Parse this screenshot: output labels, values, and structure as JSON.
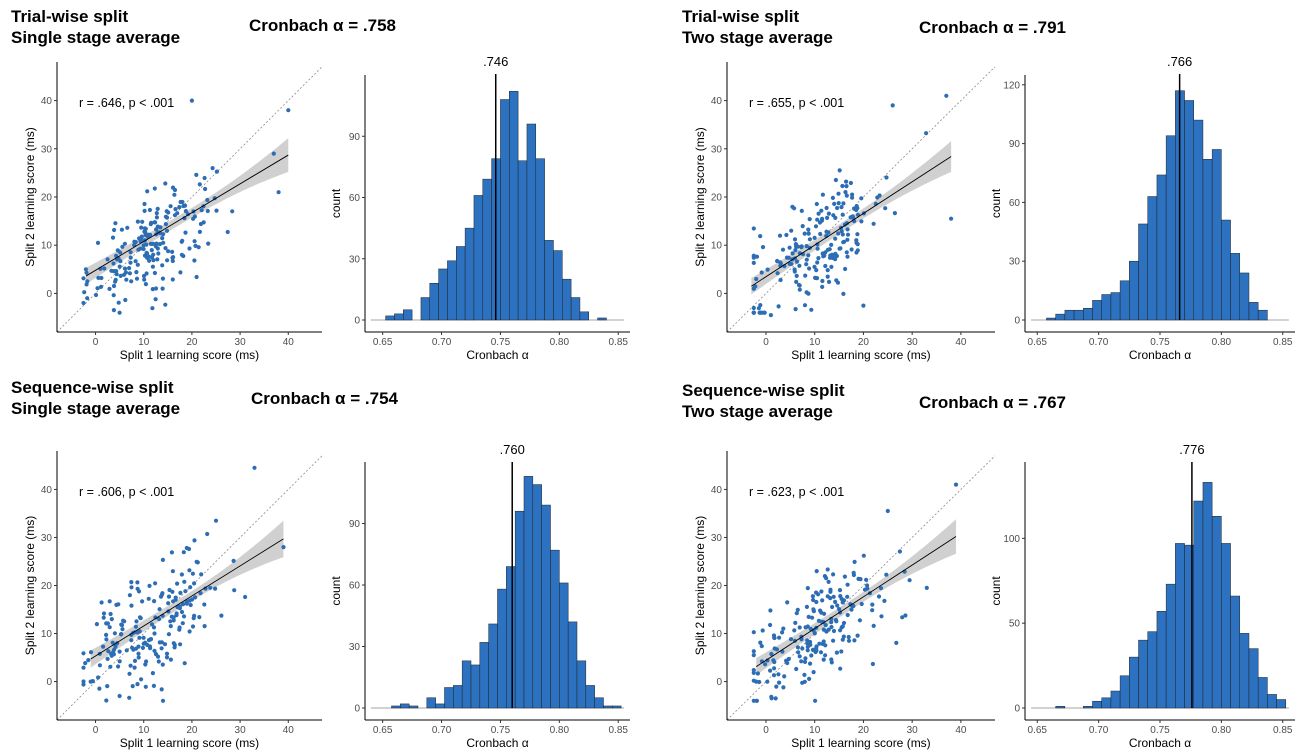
{
  "colors": {
    "points": "#2d6db4",
    "bars": "#2c72c1",
    "bar_border": "#222222",
    "ci_band": "#c8c8c8",
    "fit_line": "#000000",
    "identity_line": "#8c8c8c"
  },
  "chart_data": [
    {
      "panel_title": [
        "Trial-wise split",
        "Single stage average"
      ],
      "alpha_label": "Cronbach α = .758",
      "scatter": {
        "type": "scatter",
        "annotation": "r = .646, p < .001",
        "xlabel": "Split 1 learning score (ms)",
        "ylabel": "Split 2 learning score (ms)",
        "xlim": [
          -8,
          47
        ],
        "ylim": [
          -8,
          48
        ],
        "xticks": [
          0,
          10,
          20,
          30,
          40
        ],
        "yticks": [
          0,
          10,
          20,
          30,
          40
        ],
        "fit": {
          "x": [
            -2,
            40
          ],
          "y": [
            3.6,
            28.7
          ]
        },
        "ci_halfwidth": [
          1.7,
          1.0,
          3.5
        ],
        "points_summary": {
          "n": 200,
          "x_mean": 11.5,
          "x_sd": 6.5,
          "y_mean": 10.5,
          "y_sd": 6.3,
          "r": 0.646
        },
        "notable_points": [
          [
            20,
            40
          ],
          [
            40,
            38
          ],
          [
            37,
            29
          ],
          [
            38,
            21
          ],
          [
            5,
            -4
          ],
          [
            -2,
            5
          ]
        ]
      },
      "histogram": {
        "type": "bar",
        "xlabel": "Cronbach α",
        "ylabel": "count",
        "bin_start": 0.645,
        "bin_width": 0.0075,
        "counts": [
          0,
          2,
          3,
          5,
          0,
          11,
          18,
          25,
          29,
          36,
          45,
          61,
          69,
          79,
          108,
          112,
          78,
          96,
          79,
          39,
          34,
          20,
          11,
          4,
          0,
          1,
          0,
          0
        ],
        "xlim": [
          0.635,
          0.86
        ],
        "ylim": [
          0,
          120
        ],
        "xticks": [
          0.65,
          0.7,
          0.75,
          0.8,
          0.85
        ],
        "xtick_labels": [
          "0.65",
          "0.70",
          "0.75",
          "0.80",
          "0.85"
        ],
        "yticks": [
          0,
          30,
          60,
          90
        ],
        "ytick_labels": [
          "0",
          "30",
          "60",
          "90"
        ],
        "median": 0.746,
        "median_label": ".746"
      }
    },
    {
      "panel_title": [
        "Trial-wise split",
        "Two stage average"
      ],
      "alpha_label": "Cronbach α = .791",
      "scatter": {
        "type": "scatter",
        "annotation": "r = .655, p < .001",
        "xlabel": "Split 1 learning score (ms)",
        "ylabel": "Split 2 learning score (ms)",
        "xlim": [
          -8,
          47
        ],
        "ylim": [
          -8,
          48
        ],
        "xticks": [
          0,
          10,
          20,
          30,
          40
        ],
        "yticks": [
          0,
          10,
          20,
          30,
          40
        ],
        "fit": {
          "x": [
            -3,
            38
          ],
          "y": [
            1.5,
            28.4
          ]
        },
        "ci_halfwidth": [
          1.7,
          1.0,
          3.2
        ],
        "points_summary": {
          "n": 200,
          "x_mean": 11.0,
          "x_sd": 7.2,
          "y_mean": 10.5,
          "y_sd": 7.0,
          "r": 0.655
        },
        "notable_points": [
          [
            37,
            41
          ],
          [
            26,
            39
          ],
          [
            38,
            15.5
          ],
          [
            1,
            -4.5
          ],
          [
            -2,
            3
          ]
        ]
      },
      "histogram": {
        "type": "bar",
        "xlabel": "Cronbach α",
        "ylabel": "count",
        "bin_start": 0.6575,
        "bin_width": 0.0075,
        "counts": [
          1,
          3,
          5,
          5,
          6,
          10,
          13,
          14,
          20,
          30,
          49,
          63,
          74,
          94,
          117,
          112,
          102,
          82,
          87,
          51,
          34,
          24,
          9,
          5,
          0
        ],
        "xlim": [
          0.64,
          0.86
        ],
        "ylim": [
          0,
          125
        ],
        "xticks": [
          0.65,
          0.7,
          0.75,
          0.8,
          0.85
        ],
        "xtick_labels": [
          "0.65",
          "0.70",
          "0.75",
          "0.80",
          "0.85"
        ],
        "yticks": [
          0,
          30,
          60,
          90,
          120
        ],
        "ytick_labels": [
          "0",
          "30",
          "60",
          "90",
          "120"
        ],
        "median": 0.766,
        "median_label": ".766"
      }
    },
    {
      "panel_title": [
        "Sequence-wise split",
        "Single stage average"
      ],
      "alpha_label": "Cronbach α = .754",
      "scatter": {
        "type": "scatter",
        "annotation": "r = .606, p < .001",
        "xlabel": "Split 1 learning score (ms)",
        "ylabel": "Split 2 learning score (ms)",
        "xlim": [
          -8,
          47
        ],
        "ylim": [
          -8,
          48
        ],
        "xticks": [
          0,
          10,
          20,
          30,
          40
        ],
        "yticks": [
          0,
          10,
          20,
          30,
          40
        ],
        "fit": {
          "x": [
            -1,
            39
          ],
          "y": [
            4.7,
            29.7
          ]
        },
        "ci_halfwidth": [
          1.8,
          1.0,
          3.8
        ],
        "points_summary": {
          "n": 200,
          "x_mean": 12.0,
          "x_sd": 7.5,
          "y_mean": 12.0,
          "y_sd": 7.5,
          "r": 0.606
        },
        "notable_points": [
          [
            33,
            44.5
          ],
          [
            39,
            28
          ],
          [
            25,
            33.5
          ],
          [
            5,
            -3
          ],
          [
            -1,
            0
          ]
        ]
      },
      "histogram": {
        "type": "bar",
        "xlabel": "Cronbach α",
        "ylabel": "count",
        "bin_start": 0.6575,
        "bin_width": 0.0075,
        "counts": [
          1,
          2,
          1,
          0,
          5,
          2,
          10,
          11,
          23,
          21,
          32,
          41,
          58,
          69,
          96,
          113,
          109,
          99,
          77,
          61,
          42,
          23,
          11,
          5,
          1,
          1,
          0
        ],
        "xlim": [
          0.635,
          0.86
        ],
        "ylim": [
          0,
          120
        ],
        "xticks": [
          0.65,
          0.7,
          0.75,
          0.8,
          0.85
        ],
        "xtick_labels": [
          "0.65",
          "0.70",
          "0.75",
          "0.80",
          "0.85"
        ],
        "yticks": [
          0,
          30,
          60,
          90
        ],
        "ytick_labels": [
          "0",
          "30",
          "60",
          "90"
        ],
        "median": 0.76,
        "median_label": ".760"
      }
    },
    {
      "panel_title": [
        "Sequence-wise split",
        "Two stage average"
      ],
      "alpha_label": "Cronbach α = .767",
      "scatter": {
        "type": "scatter",
        "annotation": "r = .623, p < .001",
        "xlabel": "Split 1 learning score (ms)",
        "ylabel": "Split 2 learning score (ms)",
        "xlim": [
          -8,
          47
        ],
        "ylim": [
          -8,
          48
        ],
        "xticks": [
          0,
          10,
          20,
          30,
          40
        ],
        "yticks": [
          0,
          10,
          20,
          30,
          40
        ],
        "fit": {
          "x": [
            -2,
            39
          ],
          "y": [
            3.1,
            30.2
          ]
        },
        "ci_halfwidth": [
          1.8,
          1.0,
          3.6
        ],
        "points_summary": {
          "n": 200,
          "x_mean": 11.0,
          "x_sd": 7.5,
          "y_mean": 11.0,
          "y_sd": 7.5,
          "r": 0.623
        },
        "notable_points": [
          [
            39,
            41
          ],
          [
            25,
            35.5
          ],
          [
            33,
            19.5
          ],
          [
            2,
            -3.5
          ],
          [
            -2,
            0
          ]
        ]
      },
      "histogram": {
        "type": "bar",
        "xlabel": "Cronbach α",
        "ylabel": "count",
        "bin_start": 0.6575,
        "bin_width": 0.0075,
        "counts": [
          0,
          1,
          0,
          0,
          1,
          4,
          6,
          10,
          19,
          30,
          40,
          45,
          57,
          73,
          97,
          96,
          122,
          133,
          113,
          97,
          66,
          44,
          35,
          18,
          8,
          5,
          0
        ],
        "xlim": [
          0.64,
          0.86
        ],
        "ylim": [
          0,
          145
        ],
        "xticks": [
          0.65,
          0.7,
          0.75,
          0.8,
          0.85
        ],
        "xtick_labels": [
          "0.65",
          "0.70",
          "0.75",
          "0.80",
          "0.85"
        ],
        "yticks": [
          0,
          50,
          100
        ],
        "ytick_labels": [
          "0",
          "50",
          "100"
        ],
        "median": 0.776,
        "median_label": ".776"
      }
    }
  ]
}
